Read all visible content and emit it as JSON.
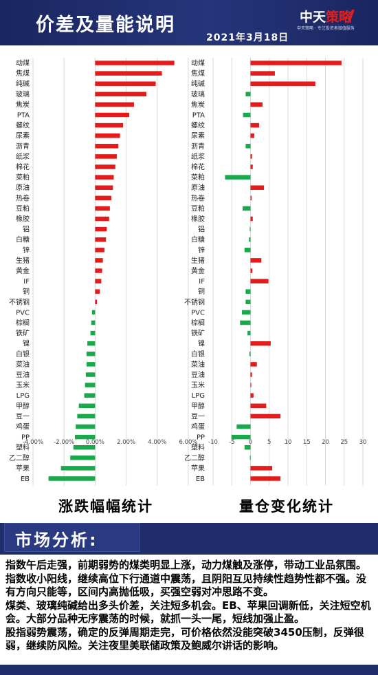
{
  "header": {
    "title": "价差及量能说明",
    "date": "2021年3月18日",
    "logo_main": "中天",
    "logo_accent": "策略",
    "logo_sub": "中天策略 · 专注投资者增值服务"
  },
  "colors": {
    "up": "#e31b1b",
    "down": "#19a84a",
    "header": "#1f2d6b"
  },
  "chart_data": [
    {
      "type": "bar",
      "orientation": "horizontal",
      "caption": "涨跌幅幅统计",
      "categories": [
        "动煤",
        "焦煤",
        "纯碱",
        "玻璃",
        "焦炭",
        "PTA",
        "螺纹",
        "尿素",
        "沥青",
        "纸浆",
        "棉花",
        "菜粕",
        "原油",
        "热卷",
        "豆粕",
        "橡胶",
        "铝",
        "白糖",
        "锌",
        "生猪",
        "黄金",
        "IF",
        "铜",
        "不锈钢",
        "PVC",
        "棕榈",
        "铁矿",
        "镍",
        "白银",
        "菜油",
        "豆油",
        "玉米",
        "LPG",
        "甲醇",
        "豆一",
        "鸡蛋",
        "PP",
        "塑料",
        "乙二醇",
        "苹果",
        "EB"
      ],
      "values": [
        5.1,
        4.3,
        3.9,
        3.3,
        2.5,
        2.2,
        1.8,
        1.6,
        1.5,
        1.4,
        1.3,
        1.2,
        1.15,
        1.05,
        0.95,
        0.9,
        0.75,
        0.7,
        0.6,
        0.5,
        0.45,
        0.4,
        0.3,
        0.12,
        -0.2,
        -0.25,
        -0.3,
        -0.5,
        -0.55,
        -0.55,
        -0.6,
        -0.65,
        -0.7,
        -1.05,
        -1.15,
        -1.25,
        -1.3,
        -1.4,
        -1.6,
        -2.2,
        -3.0
      ],
      "xlim": [
        -4,
        6
      ],
      "xticks": [
        -4,
        -2,
        0,
        2,
        4,
        6
      ],
      "xtick_labels": [
        "-4.00%",
        "-2.00%",
        "0.00%",
        "2.00%",
        "4.00%",
        "6.00%"
      ],
      "grid": true
    },
    {
      "type": "bar",
      "orientation": "horizontal",
      "caption": "量仓变化统计",
      "categories": [
        "动煤",
        "焦煤",
        "纯碱",
        "玻璃",
        "焦炭",
        "PTA",
        "螺纹",
        "尿素",
        "沥青",
        "纸浆",
        "棉花",
        "菜粕",
        "原油",
        "热卷",
        "豆粕",
        "橡胶",
        "铝",
        "白糖",
        "锌",
        "生猪",
        "黄金",
        "IF",
        "铜",
        "不锈钢",
        "PVC",
        "棕榈",
        "铁矿",
        "镍",
        "白银",
        "菜油",
        "豆油",
        "玉米",
        "LPG",
        "甲醇",
        "豆一",
        "鸡蛋",
        "PP",
        "塑料",
        "乙二醇",
        "苹果",
        "EB"
      ],
      "values": [
        24.3,
        6.5,
        17.3,
        -1.3,
        3.2,
        -2.0,
        2.3,
        1.0,
        -1.3,
        0.4,
        0.6,
        -6.8,
        3.6,
        0.3,
        -2.1,
        0.6,
        -0.2,
        -0.4,
        -1.6,
        2.9,
        0.5,
        4.8,
        -1.3,
        -1.3,
        -2.3,
        -2.8,
        -0.8,
        5.4,
        -0.3,
        1.7,
        0.4,
        0.2,
        0.8,
        4.2,
        8.0,
        -3.7,
        -5.1,
        -1.6,
        -0.15,
        5.8,
        8.0
      ],
      "xlim": [
        -10,
        30
      ],
      "xticks": [
        -10,
        -5,
        0,
        5,
        10,
        15,
        20,
        25,
        30
      ],
      "xtick_labels": [
        "-10",
        "-5",
        "0",
        "5",
        "10",
        "15",
        "20",
        "25",
        "30"
      ],
      "grid": true
    }
  ],
  "market": {
    "title": "市场分析:",
    "paragraphs": [
      "指数午后走强，前期弱势的煤类明显上涨，动力煤触及涨停，带动工业品氛围。指数收小阳线，继续高位下行通道中震荡，且阴阳互见持续性趋势性都不强。没有方向只能等，区间内高抛低吸，买强空弱对冲思路不变。",
      "煤类、玻璃纯碱给出多头价差，关注短多机会。EB、苹果回调新低，关注短空机会。大部分品种无序震荡的时候，就抓一头一尾，短线加强止盈。",
      "股指弱势震荡，确定的反弹周期走完，可价格依然没能突破3450压制，反弹很弱，继续防风险。关注夜里美联储政策及鲍威尔讲话的影响。"
    ]
  }
}
